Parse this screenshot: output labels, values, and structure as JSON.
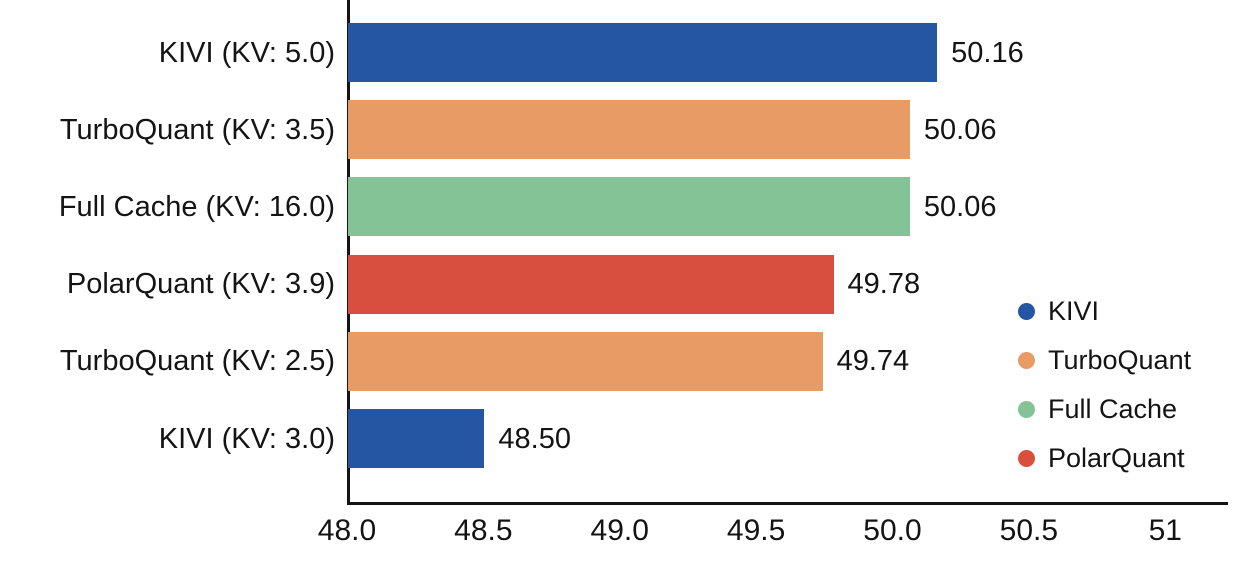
{
  "chart_data": {
    "type": "bar",
    "orientation": "horizontal",
    "title": "",
    "xlabel": "",
    "ylabel": "",
    "grid": false,
    "categories": [
      "KIVI (KV: 5.0)",
      "TurboQuant (KV: 3.5)",
      "Full Cache (KV: 16.0)",
      "PolarQuant (KV: 3.9)",
      "TurboQuant (KV: 2.5)",
      "KIVI (KV: 3.0)"
    ],
    "values": [
      50.16,
      50.06,
      50.06,
      49.78,
      49.74,
      48.5
    ],
    "value_labels": [
      "50.16",
      "50.06",
      "50.06",
      "49.78",
      "49.74",
      "48.50"
    ],
    "bar_series": [
      "KIVI",
      "TurboQuant",
      "Full Cache",
      "PolarQuant",
      "TurboQuant",
      "KIVI"
    ],
    "series_colors": {
      "KIVI": "#2456a4",
      "TurboQuant": "#e89b64",
      "Full Cache": "#84c396",
      "PolarQuant": "#d94f3e"
    },
    "xlim": [
      48.0,
      51.23
    ],
    "x_ticks": [
      {
        "value": 48.0,
        "label": "48.0"
      },
      {
        "value": 48.5,
        "label": "48.5"
      },
      {
        "value": 49.0,
        "label": "49.0"
      },
      {
        "value": 49.5,
        "label": "49.5"
      },
      {
        "value": 50.0,
        "label": "50.0"
      },
      {
        "value": 50.5,
        "label": "50.5"
      },
      {
        "value": 51.0,
        "label": "51"
      }
    ],
    "legend": {
      "position": "right",
      "entries": [
        {
          "label": "KIVI",
          "color": "#2456a4"
        },
        {
          "label": "TurboQuant",
          "color": "#e89b64"
        },
        {
          "label": "Full Cache",
          "color": "#84c396"
        },
        {
          "label": "PolarQuant",
          "color": "#d94f3e"
        }
      ]
    },
    "axis_color": "#141414",
    "text_color": "#141414"
  }
}
